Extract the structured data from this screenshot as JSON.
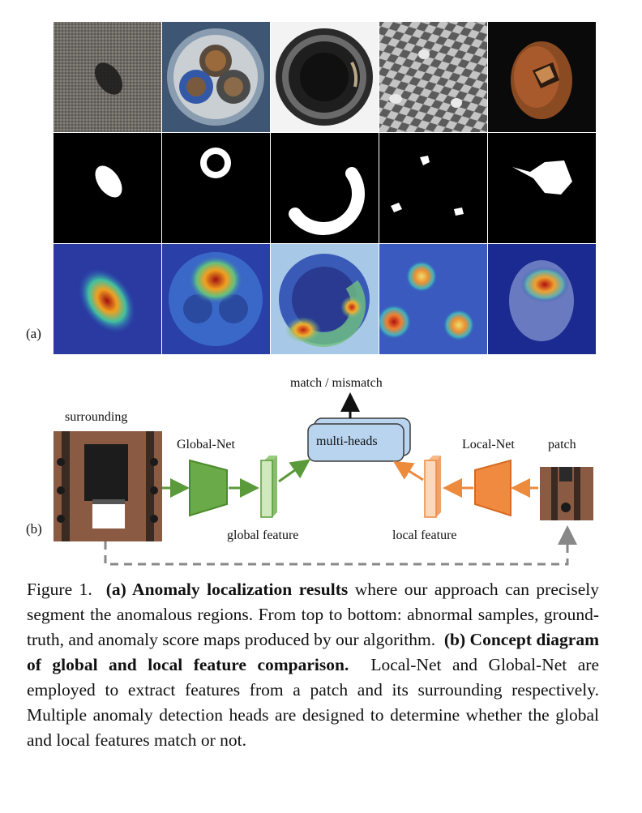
{
  "figure": {
    "panel_a_label": "(a)",
    "panel_b_label": "(b)",
    "rows": [
      "abnormal samples",
      "ground-truth",
      "anomaly score maps"
    ],
    "columns": [
      "carpet",
      "cable",
      "bottle",
      "grid",
      "hazelnut"
    ]
  },
  "diagram": {
    "surrounding_label": "surrounding",
    "patch_label": "patch",
    "global_net_label": "Global-Net",
    "local_net_label": "Local-Net",
    "global_feature_label": "global feature",
    "local_feature_label": "local feature",
    "multi_heads_label": "multi-heads",
    "output_label": "match / mismatch",
    "colors": {
      "global": "#5a9a3a",
      "local": "#ee8a3c",
      "heads": "#b8d4ee",
      "dashed": "#888888"
    }
  },
  "caption": {
    "prefix": "Figure 1.",
    "part_a_bold": "(a) Anomaly localization results",
    "part_a_text": "where our approach can precisely segment the anomalous regions. From top to bottom: abnormal samples, ground-truth, and anomaly score maps produced by our algorithm.",
    "part_b_bold": "(b) Concept diagram of global and local feature comparison.",
    "part_b_text": "Local-Net and Global-Net are employed to extract features from a patch and its surrounding respectively. Multiple anomaly detection heads are designed to determine whether the global and local features match or not."
  }
}
